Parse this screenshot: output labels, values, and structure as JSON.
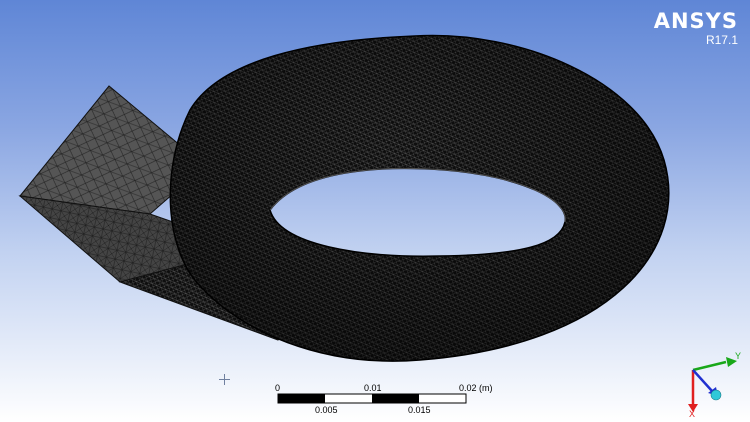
{
  "logo": {
    "name": "ANSYS",
    "version": "R17.1"
  },
  "scale_bar": {
    "top_labels": [
      "0",
      "0.01",
      "0.02 (m)"
    ],
    "bottom_labels": [
      "0.005",
      "0.015"
    ]
  },
  "triad": {
    "y_label": "Y",
    "x_label": "X"
  },
  "colors": {
    "background_top": "#5f86d6",
    "background_bottom": "#ffffff",
    "mesh": "#1a1a1a",
    "axis_y": "#19a819",
    "axis_x": "#e02020",
    "axis_z": "#2030d0",
    "triad_ball": "#30c8d8"
  },
  "icons": {
    "viewport_cursor": "crosshair-icon",
    "axes": "coordinate-triad-icon"
  }
}
